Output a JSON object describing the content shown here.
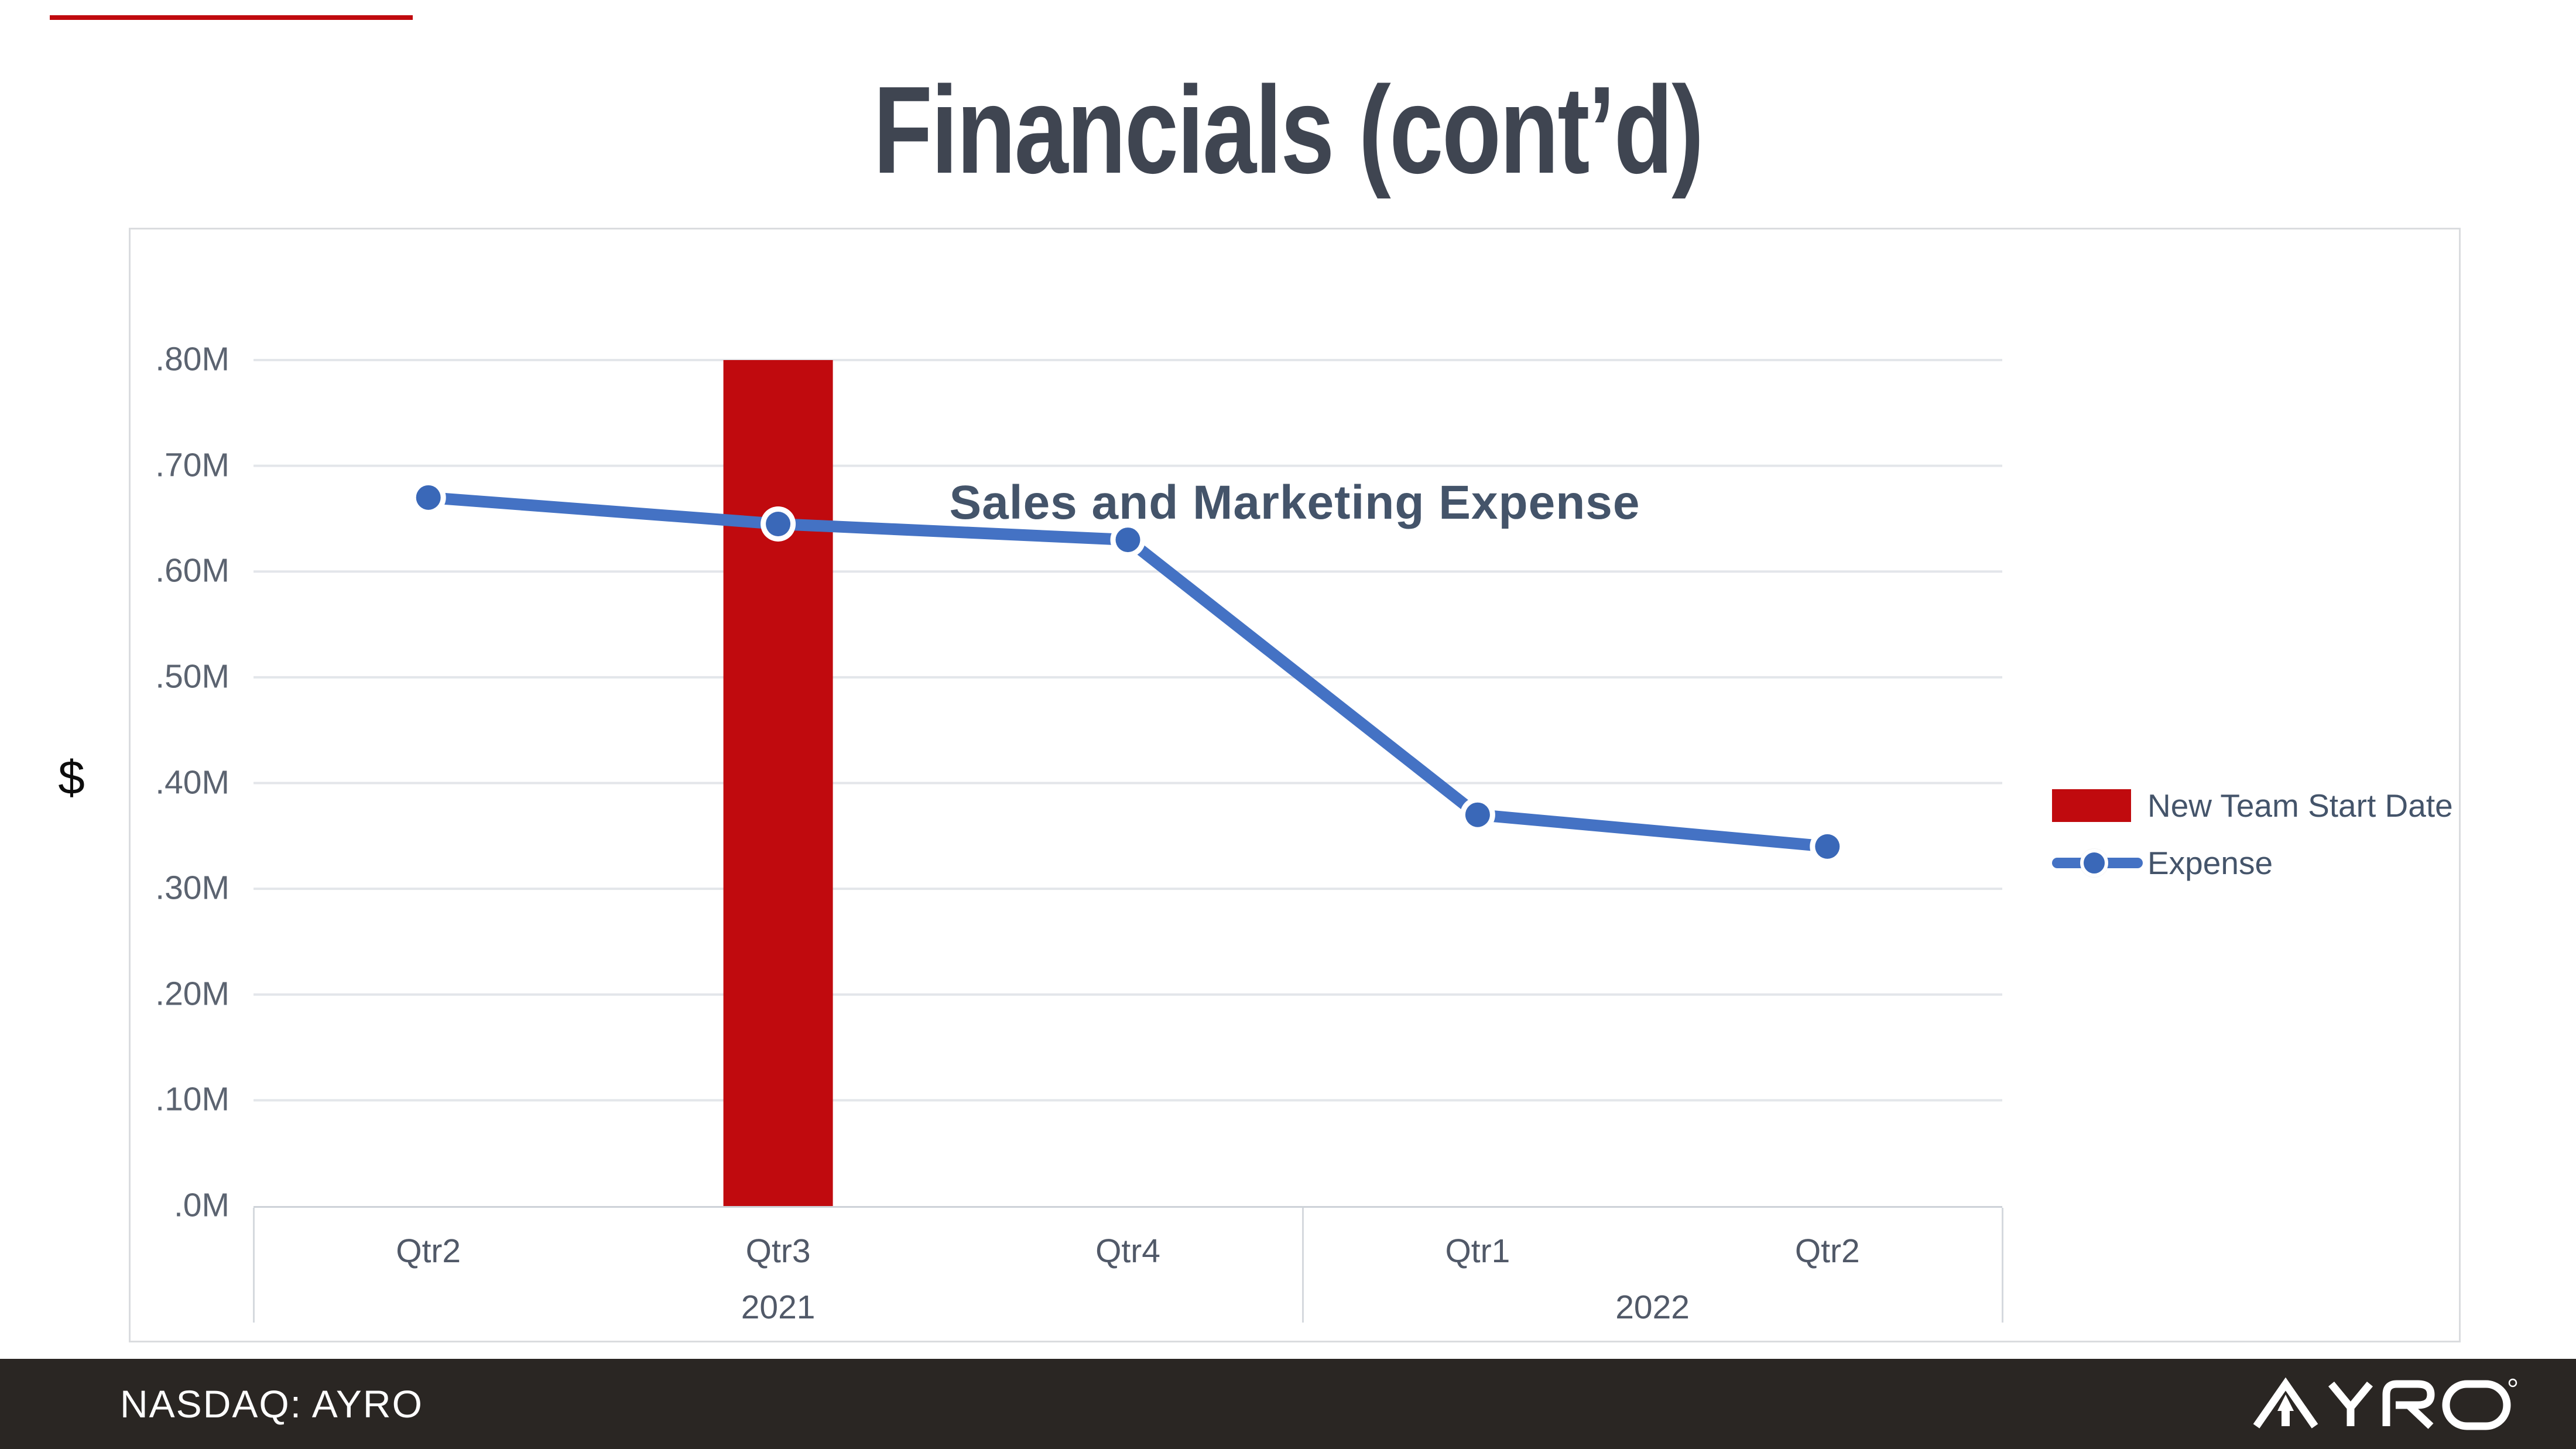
{
  "slide": {
    "title": "Financials (cont’d)",
    "accent_color": "#C00A0E",
    "background_color": "#FFFFFF"
  },
  "footer": {
    "ticker_label": "NASDAQ: AYRO",
    "logo_name": "AYRO",
    "bar_color": "#2A2623",
    "text_color": "#FFFFFF"
  },
  "chart_data": {
    "type": "line",
    "title": "Sales and Marketing Expense",
    "ylabel": "$",
    "categories": [
      "Qtr2",
      "Qtr3",
      "Qtr4",
      "Qtr1",
      "Qtr2"
    ],
    "year_groups": [
      {
        "label": "2021",
        "span": 3
      },
      {
        "label": "2022",
        "span": 2
      }
    ],
    "y_ticks": {
      "labels": [
        ".80M",
        ".70M",
        ".60M",
        ".50M",
        ".40M",
        ".30M",
        ".20M",
        ".10M",
        ".0M"
      ],
      "values": [
        0.8,
        0.7,
        0.6,
        0.5,
        0.4,
        0.3,
        0.2,
        0.1,
        0.0
      ]
    },
    "ylim": [
      0,
      0.8
    ],
    "grid": "horizontal",
    "legend_position": "right",
    "series": [
      {
        "name": "New Team Start Date",
        "type": "bar",
        "color": "#C00A0E",
        "category_index": 1,
        "value": 0.8
      },
      {
        "name": "Expense",
        "type": "line",
        "color": "#4472C4",
        "marker_color": "#3A68B8",
        "values": [
          0.67,
          0.645,
          0.63,
          0.37,
          0.34
        ]
      }
    ],
    "colors": {
      "gridline": "#E3E6EA",
      "axis_line": "#CDD2D8",
      "tick_text": "#5B6370",
      "title_text": "#44546A"
    }
  }
}
